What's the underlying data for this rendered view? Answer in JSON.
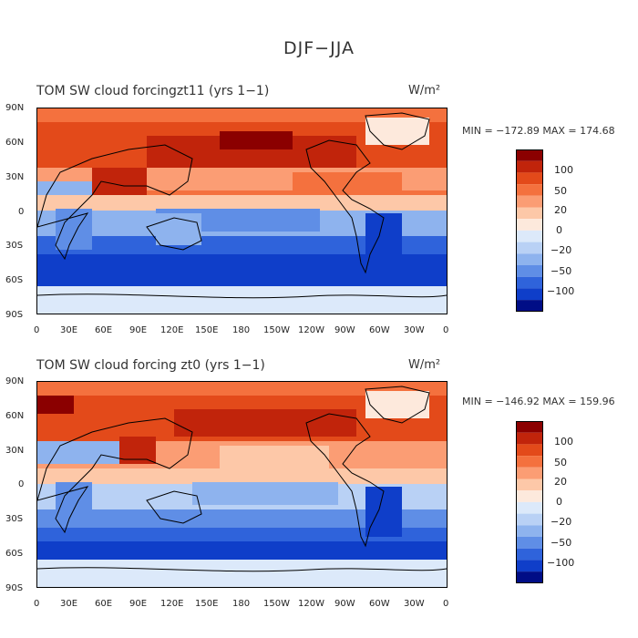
{
  "figure_title": "DJF−JJA",
  "panels": [
    {
      "title": "TOM SW cloud forcingzt11 (yrs 1−1)",
      "units": "W/m²",
      "stats": "MIN = −172.89 MAX = 174.68"
    },
    {
      "title": "TOM SW cloud forcing zt0 (yrs 1−1)",
      "units": "W/m²",
      "stats": "MIN = −146.92 MAX = 159.96"
    }
  ],
  "lat_labels": [
    "90N",
    "60N",
    "30N",
    "0",
    "30S",
    "60S",
    "90S"
  ],
  "lon_labels": [
    "0",
    "30E",
    "60E",
    "90E",
    "120E",
    "150E",
    "180",
    "150W",
    "120W",
    "90W",
    "60W",
    "30W",
    "0"
  ],
  "colorbar": {
    "labels": [
      "100",
      "50",
      "20",
      "0",
      "−20",
      "−50",
      "−100"
    ],
    "colors": [
      "#8b0000",
      "#c1240b",
      "#e34a1a",
      "#f4713e",
      "#fb9d74",
      "#fdc8a8",
      "#fde9dc",
      "#dce9fa",
      "#b9d1f5",
      "#8eb3ee",
      "#5f8ee6",
      "#2f63db",
      "#0f3ec9",
      "#000d86"
    ]
  }
}
